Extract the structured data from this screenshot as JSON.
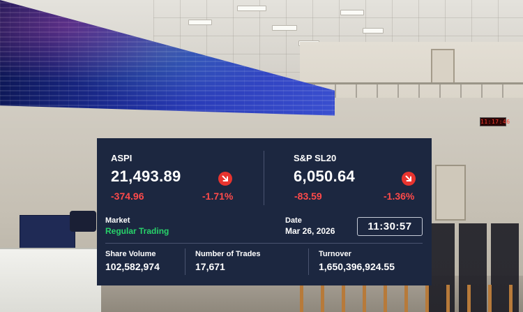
{
  "indices": [
    {
      "name": "ASPI",
      "value": "21,493.89",
      "change": "-374.96",
      "change_pct": "-1.71%",
      "trend_icon": "arrow-down-right-icon"
    },
    {
      "name": "S&P SL20",
      "value": "6,050.64",
      "change": "-83.59",
      "change_pct": "-1.36%",
      "trend_icon": "arrow-down-right-icon"
    }
  ],
  "market": {
    "label": "Market",
    "status": "Regular Trading"
  },
  "date": {
    "label": "Date",
    "value": "Mar 26, 2026"
  },
  "time": "11:30:57",
  "stats": [
    {
      "label": "Share Volume",
      "value": "102,582,974"
    },
    {
      "label": "Number of Trades",
      "value": "17,671"
    },
    {
      "label": "Turnover",
      "value": "1,650,396,924.55"
    }
  ],
  "wall_clock": "11:17:46",
  "colors": {
    "panel_bg": "#1c2740",
    "negative": "#ff4a4a",
    "down_badge": "#e8342f",
    "status_green": "#28d36a"
  }
}
